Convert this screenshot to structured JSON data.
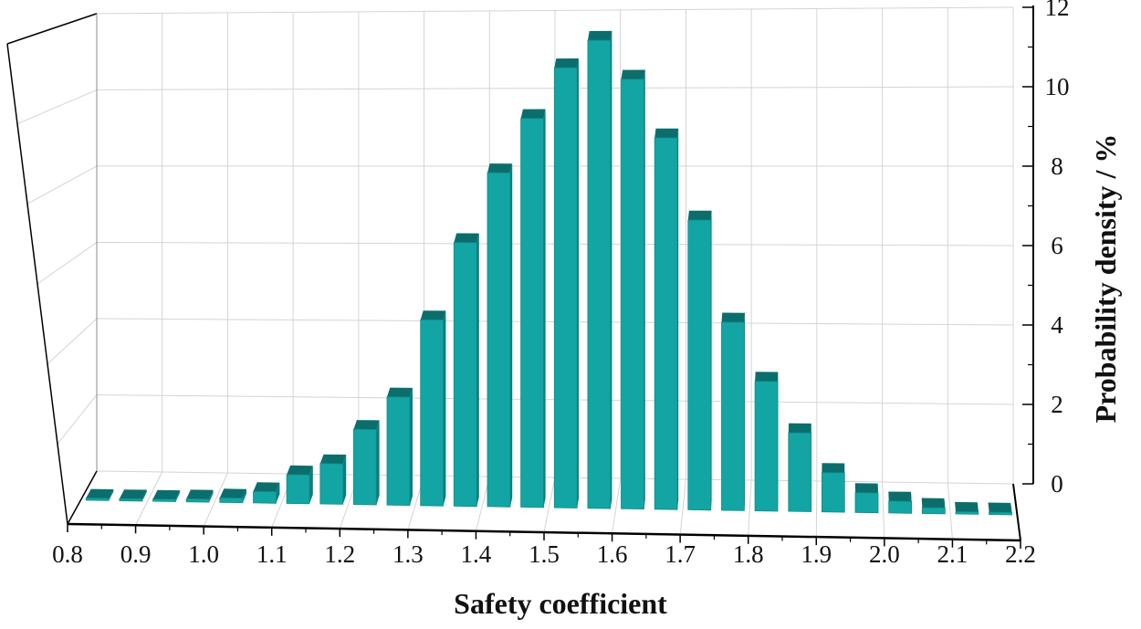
{
  "chart_data": {
    "type": "bar",
    "style": "3d",
    "title": "",
    "xlabel": "Safety coefficient",
    "ylabel": "Probability density / %",
    "x_ticks": [
      "0.8",
      "0.9",
      "1.0",
      "1.1",
      "1.2",
      "1.3",
      "1.4",
      "1.5",
      "1.6",
      "1.7",
      "1.8",
      "1.9",
      "2.0",
      "2.1",
      "2.2"
    ],
    "y_ticks": [
      "0",
      "2",
      "4",
      "6",
      "8",
      "10",
      "12"
    ],
    "x_range": [
      0.8,
      2.2
    ],
    "ylim": [
      0,
      12
    ],
    "grid": true,
    "categories": [
      0.825,
      0.875,
      0.925,
      0.975,
      1.025,
      1.075,
      1.125,
      1.175,
      1.225,
      1.275,
      1.325,
      1.375,
      1.425,
      1.475,
      1.525,
      1.575,
      1.625,
      1.675,
      1.725,
      1.775,
      1.825,
      1.875,
      1.925,
      1.975,
      2.025,
      2.075,
      2.125,
      2.175
    ],
    "values": [
      0.02,
      0.03,
      0.05,
      0.08,
      0.12,
      0.3,
      0.75,
      1.05,
      1.95,
      2.8,
      4.8,
      6.8,
      8.6,
      10.0,
      11.3,
      12.0,
      11.0,
      9.5,
      7.4,
      4.8,
      3.3,
      2.0,
      1.0,
      0.5,
      0.3,
      0.15,
      0.06,
      0.03
    ],
    "colors": {
      "bar_front": "#13a5a3",
      "bar_top": "#0b6e6c",
      "bar_side": "#0a7e7b",
      "grid": "#d4d4d4",
      "axis": "#000000"
    }
  }
}
